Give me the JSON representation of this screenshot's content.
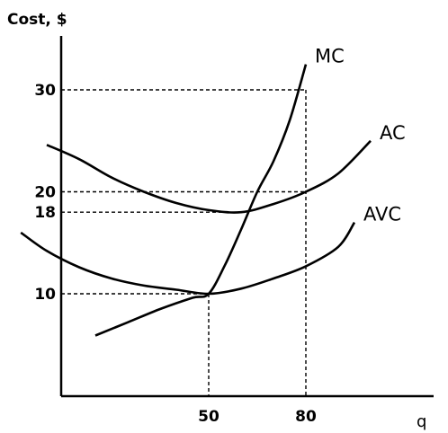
{
  "chart_data": {
    "type": "line",
    "ylabel": "Cost, $",
    "xlabel": "q",
    "y_ticks": [
      30,
      20,
      18,
      10
    ],
    "x_ticks": [
      50,
      80
    ],
    "series": [
      {
        "name": "MC",
        "x": [
          15,
          25,
          35,
          45,
          50,
          55,
          60,
          65,
          70,
          75,
          80
        ],
        "y": [
          5.9,
          7.2,
          8.5,
          9.6,
          10.0,
          12.8,
          16.3,
          20.0,
          23.0,
          27.0,
          32.5
        ]
      },
      {
        "name": "AC",
        "x": [
          0,
          10,
          20,
          30,
          40,
          50,
          60,
          70,
          80,
          90,
          100
        ],
        "y": [
          24.6,
          23.2,
          21.4,
          20.0,
          18.9,
          18.2,
          18.0,
          18.8,
          20.0,
          21.8,
          25.0
        ]
      },
      {
        "name": "AVC",
        "x": [
          -8,
          0,
          10,
          20,
          30,
          40,
          50,
          60,
          70,
          80,
          90,
          95
        ],
        "y": [
          16.0,
          14.2,
          12.6,
          11.5,
          10.8,
          10.4,
          10.0,
          10.5,
          11.5,
          12.7,
          14.6,
          17.0
        ]
      }
    ],
    "reference_points": [
      {
        "x": 80,
        "y": 30
      },
      {
        "x": 80,
        "y": 20
      },
      {
        "x": 60,
        "y": 18
      },
      {
        "x": 50,
        "y": 10
      }
    ]
  }
}
